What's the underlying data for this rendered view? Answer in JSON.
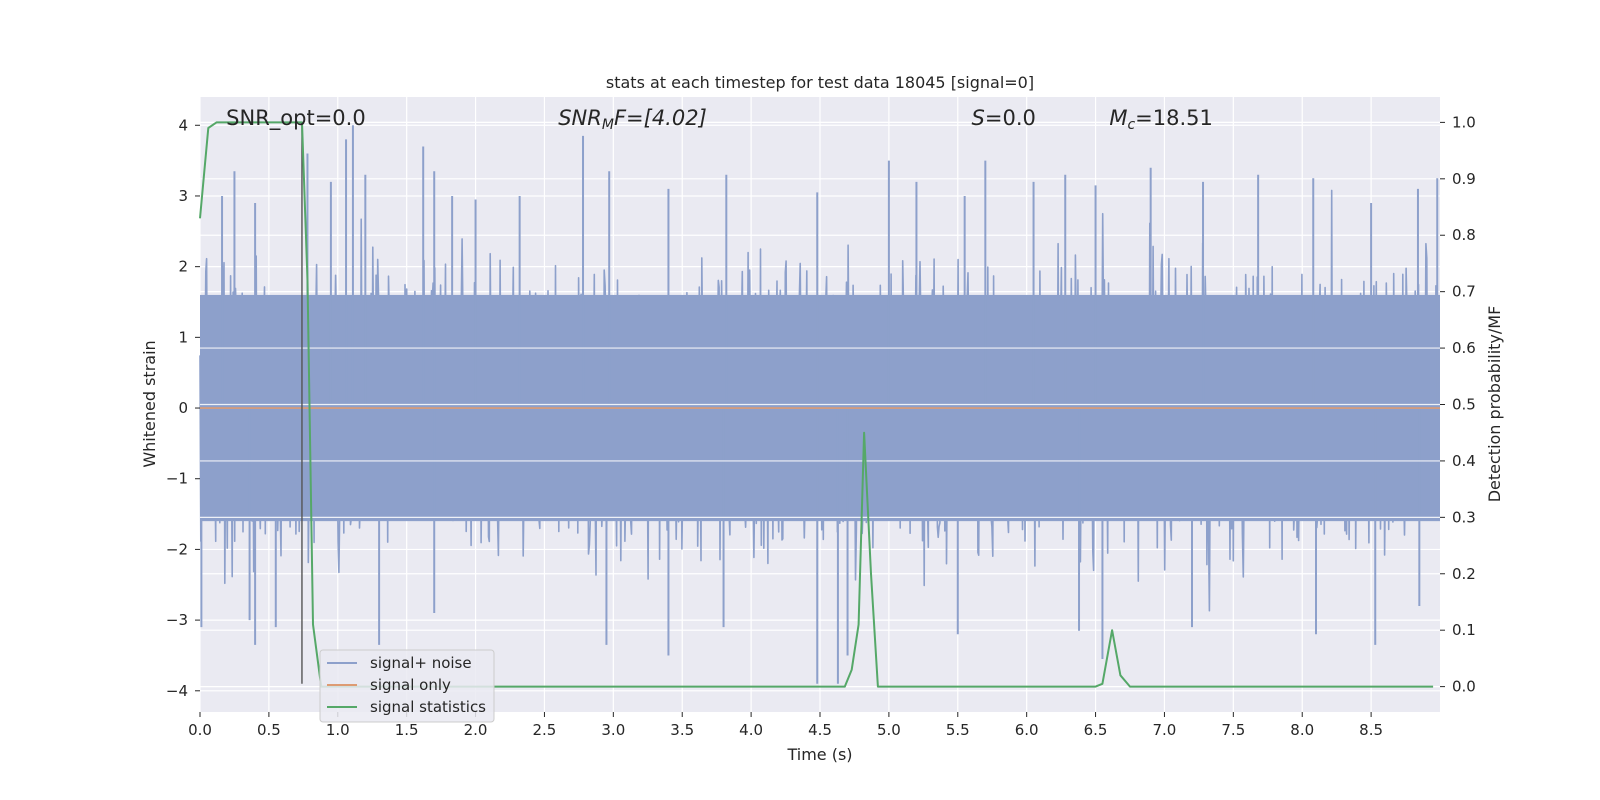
{
  "chart_data": {
    "type": "line",
    "title": "stats at each timestep for test data 18045 [signal=0]",
    "xlabel": "Time (s)",
    "ylabel": "Whitened strain",
    "y2label": "Detection probability/MF",
    "xlim": [
      0.0,
      9.0
    ],
    "ylim": [
      -4.3,
      4.4
    ],
    "y2lim": [
      -0.045,
      1.045
    ],
    "xticks": [
      "0.0",
      "0.5",
      "1.0",
      "1.5",
      "2.0",
      "2.5",
      "3.0",
      "3.5",
      "4.0",
      "4.5",
      "5.0",
      "5.5",
      "6.0",
      "6.5",
      "7.0",
      "7.5",
      "8.0",
      "8.5"
    ],
    "yticks": [
      "4",
      "3",
      "2",
      "1",
      "0",
      "−1",
      "−2",
      "−3",
      "−4"
    ],
    "y2ticks": [
      "1.0",
      "0.9",
      "0.8",
      "0.7",
      "0.6",
      "0.5",
      "0.4",
      "0.3",
      "0.2",
      "0.1",
      "0.0"
    ],
    "grid": true,
    "legend_position": "lower-left",
    "annotations": [
      {
        "id": "snr-opt",
        "text": "SNR_opt=0.0",
        "x": 0.19,
        "y": 4.1
      },
      {
        "id": "snr-mf",
        "base": "SNR",
        "sub": "M",
        "tail": "F=[4.02]",
        "x": 2.6,
        "y": 4.1
      },
      {
        "id": "s-value",
        "base": "S",
        "tail": "=0.0",
        "x": 5.6,
        "y": 4.1
      },
      {
        "id": "mc-value",
        "base": "M",
        "sub": "c",
        "tail": "=18.51",
        "x": 6.6,
        "y": 4.1
      }
    ],
    "vline": {
      "x": 0.74,
      "y_range": [
        -3.9,
        4.0
      ]
    },
    "series": [
      {
        "name": "signal+ noise",
        "axis": "left",
        "color": "#8da0cb",
        "style": "noise",
        "noise_band": [
          -1.6,
          1.6
        ],
        "peaks": [
          [
            0.16,
            3.0
          ],
          [
            0.25,
            3.35
          ],
          [
            0.4,
            2.9
          ],
          [
            0.78,
            3.6
          ],
          [
            0.95,
            3.2
          ],
          [
            1.06,
            3.8
          ],
          [
            1.11,
            4.0
          ],
          [
            1.2,
            3.3
          ],
          [
            1.62,
            3.7
          ],
          [
            1.7,
            3.35
          ],
          [
            1.83,
            3.0
          ],
          [
            2.0,
            2.95
          ],
          [
            2.32,
            3.0
          ],
          [
            2.78,
            3.85
          ],
          [
            2.97,
            3.35
          ],
          [
            3.4,
            3.1
          ],
          [
            3.82,
            3.3
          ],
          [
            4.48,
            3.05
          ],
          [
            5.0,
            3.5
          ],
          [
            5.2,
            3.2
          ],
          [
            5.55,
            3.0
          ],
          [
            5.7,
            3.5
          ],
          [
            6.05,
            3.2
          ],
          [
            6.28,
            3.3
          ],
          [
            6.5,
            3.15
          ],
          [
            6.9,
            3.4
          ],
          [
            7.28,
            3.2
          ],
          [
            7.68,
            3.3
          ],
          [
            8.08,
            3.25
          ],
          [
            8.5,
            2.9
          ],
          [
            8.84,
            3.1
          ],
          [
            8.98,
            3.25
          ]
        ],
        "troughs": [
          [
            0.01,
            -3.1
          ],
          [
            0.36,
            -3.0
          ],
          [
            0.4,
            -3.35
          ],
          [
            0.55,
            -3.1
          ],
          [
            1.3,
            -3.35
          ],
          [
            1.7,
            -2.9
          ],
          [
            2.95,
            -3.35
          ],
          [
            3.4,
            -3.5
          ],
          [
            3.8,
            -3.1
          ],
          [
            4.48,
            -3.9
          ],
          [
            4.63,
            -3.9
          ],
          [
            4.7,
            -3.5
          ],
          [
            5.5,
            -3.2
          ],
          [
            6.38,
            -3.15
          ],
          [
            6.55,
            -3.55
          ],
          [
            7.2,
            -3.1
          ],
          [
            8.1,
            -3.2
          ],
          [
            8.53,
            -3.35
          ],
          [
            8.85,
            -2.8
          ]
        ]
      },
      {
        "name": "signal only",
        "axis": "left",
        "color": "#dd9b73",
        "x": [
          0.0,
          9.0
        ],
        "values": [
          0.0,
          0.0
        ]
      },
      {
        "name": "signal statistics",
        "axis": "right",
        "color": "#55a868",
        "x": [
          0.0,
          0.06,
          0.12,
          0.2,
          0.3,
          0.4,
          0.5,
          0.6,
          0.7,
          0.74,
          0.78,
          0.82,
          0.88,
          0.95,
          1.2,
          2.0,
          3.0,
          4.0,
          4.5,
          4.68,
          4.73,
          4.78,
          4.82,
          4.87,
          4.92,
          5.0,
          6.0,
          6.5,
          6.55,
          6.62,
          6.68,
          6.75,
          7.0,
          8.0,
          8.95
        ],
        "values": [
          0.83,
          0.99,
          1.0,
          1.0,
          1.0,
          1.0,
          1.0,
          1.0,
          1.0,
          1.0,
          0.72,
          0.11,
          0.0,
          0.0,
          0.0,
          0.0,
          0.0,
          0.0,
          0.0,
          0.0,
          0.03,
          0.11,
          0.45,
          0.2,
          0.0,
          0.0,
          0.0,
          0.0,
          0.005,
          0.1,
          0.02,
          0.0,
          0.0,
          0.0,
          0.0
        ]
      }
    ]
  }
}
